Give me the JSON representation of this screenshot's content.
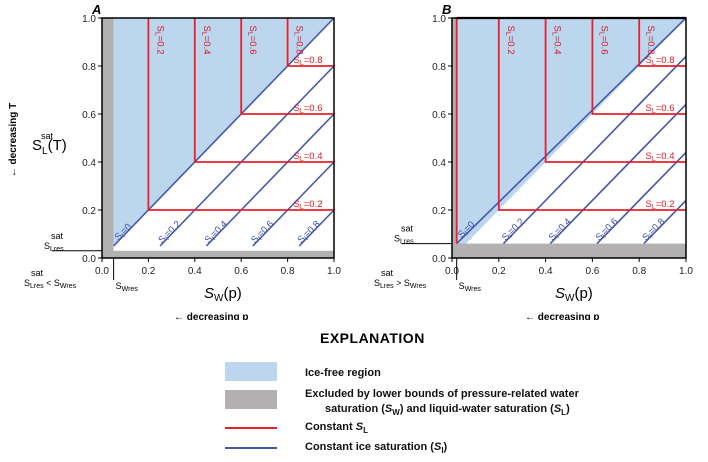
{
  "colors": {
    "ice_free": "#bcd6ee",
    "excluded": "#b2b0b0",
    "constant_sl": "#e8202e",
    "constant_si": "#4457b0"
  },
  "chart_data": [
    {
      "type": "line",
      "panel": "A",
      "xlabel_main": "S",
      "xlabel_sub": "W",
      "xlabel_tail": "(p)",
      "ylabel_main": "S",
      "ylabel_sup": "sat",
      "ylabel_sub": "L",
      "ylabel_tail": "(T)",
      "x_direction": "← decreasing p",
      "y_direction": "← decreasing T",
      "xlim": [
        0,
        1
      ],
      "ylim": [
        0,
        1
      ],
      "xticks": [
        "0.0",
        "0.2",
        "0.4",
        "0.6",
        "0.8",
        "1.0"
      ],
      "yticks": [
        "0.0",
        "0.2",
        "0.4",
        "0.6",
        "0.8",
        "1.0"
      ],
      "s_wres": 0.05,
      "s_lres": 0.03,
      "s_wres_label": "S",
      "s_wres_label_sub": "Wres",
      "s_lres_label": "S",
      "s_lres_label_sub": "Lres",
      "s_lres_label_sup": "sat",
      "condition_left": "S",
      "condition_left_sup": "sat",
      "condition_left_sub": "Lres",
      "condition_op": "<",
      "condition_right": "S",
      "condition_right_sub": "Wres",
      "constant_sl_values": [
        0.2,
        0.4,
        0.6,
        0.8
      ],
      "constant_si_values": [
        0,
        0.2,
        0.4,
        0.6,
        0.8
      ],
      "sl_labels": [
        "SL=0.2",
        "SL=0.4",
        "SL=0.6",
        "SL=0.8"
      ],
      "si_labels": [
        "SI=0",
        "SI=0.2",
        "SI=0.4",
        "SI=0.6",
        "SI=0.8"
      ]
    },
    {
      "type": "line",
      "panel": "B",
      "xlabel_main": "S",
      "xlabel_sub": "W",
      "xlabel_tail": "(p)",
      "x_direction": "← decreasing p",
      "xlim": [
        0,
        1
      ],
      "ylim": [
        0,
        1
      ],
      "xticks": [
        "0.0",
        "0.2",
        "0.4",
        "0.6",
        "0.8",
        "1.0"
      ],
      "yticks": [
        "0.0",
        "0.2",
        "0.4",
        "0.6",
        "0.8",
        "1.0"
      ],
      "s_wres": 0.02,
      "s_lres": 0.06,
      "s_wres_label": "S",
      "s_wres_label_sub": "Wres",
      "s_lres_label": "S",
      "s_lres_label_sub": "Lres",
      "s_lres_label_sup": "sat",
      "condition_left": "S",
      "condition_left_sup": "sat",
      "condition_left_sub": "Lres",
      "condition_op": ">",
      "condition_right": "S",
      "condition_right_sub": "Wres",
      "constant_sl_values": [
        0.2,
        0.4,
        0.6,
        0.8
      ],
      "constant_si_values": [
        0,
        0.2,
        0.4,
        0.6,
        0.8
      ],
      "sl_labels": [
        "SL=0.2",
        "SL=0.4",
        "SL=0.6",
        "SL=0.8"
      ],
      "si_labels": [
        "SI=0",
        "SI=0.2",
        "SI=0.4",
        "SI=0.6",
        "SI=0.8"
      ]
    }
  ],
  "legend": {
    "title": "EXPLANATION",
    "ice_free": "Ice-free region",
    "excluded_line1": "Excluded by lower bounds of pressure-related water",
    "excluded_line2_a": "saturation (",
    "excluded_line2_sw": "S",
    "excluded_line2_sw_sub": "W",
    "excluded_line2_b": ") and liquid-water saturation (",
    "excluded_line2_sl": "S",
    "excluded_line2_sl_sub": "L",
    "excluded_line2_c": ")",
    "constant_sl_a": "Constant ",
    "constant_sl_s": "S",
    "constant_sl_sub": "L",
    "constant_si_a": "Constant ice saturation (",
    "constant_si_s": "S",
    "constant_si_sub": "I",
    "constant_si_c": ")"
  }
}
